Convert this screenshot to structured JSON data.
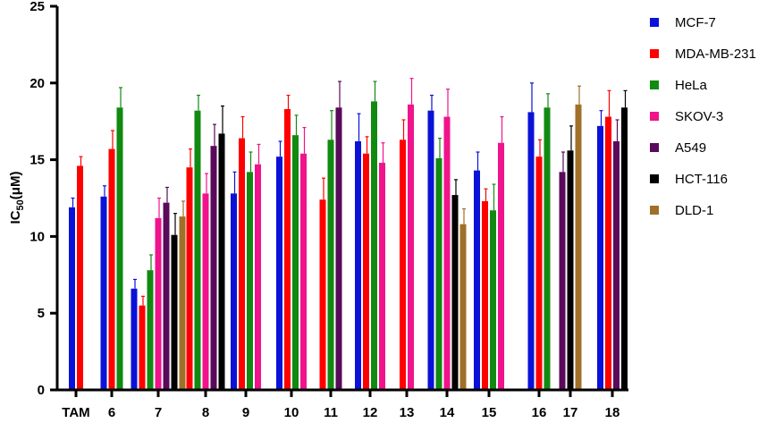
{
  "chart_data": {
    "type": "bar",
    "ylabel": "IC",
    "ylabel_sub": "50",
    "ylabel_unit": "(μM)",
    "ylim": [
      0,
      25
    ],
    "yticks": [
      0,
      5,
      10,
      15,
      20,
      25
    ],
    "grid": false,
    "legend_position": "right",
    "categories": [
      "TAM",
      "6",
      "7",
      "8",
      "9",
      "10",
      "11",
      "12",
      "13",
      "14",
      "15",
      "16",
      "17",
      "18"
    ],
    "series": [
      {
        "name": "MCF-7",
        "color": "#0a12d8",
        "values": [
          11.9,
          12.6,
          6.6,
          null,
          12.8,
          15.2,
          null,
          16.2,
          null,
          18.2,
          14.3,
          18.1,
          null,
          17.2
        ],
        "errors": [
          0.6,
          0.7,
          0.6,
          null,
          1.4,
          1.0,
          null,
          1.8,
          null,
          1.0,
          1.2,
          1.9,
          null,
          1.0
        ]
      },
      {
        "name": "MDA-MB-231",
        "color": "#ff0000",
        "values": [
          14.6,
          15.7,
          5.5,
          14.5,
          16.4,
          18.3,
          12.4,
          15.4,
          16.3,
          null,
          12.3,
          15.2,
          null,
          17.8
        ],
        "errors": [
          0.6,
          1.2,
          0.6,
          1.2,
          1.4,
          0.9,
          1.4,
          1.1,
          1.3,
          null,
          0.8,
          1.1,
          null,
          1.7
        ]
      },
      {
        "name": "HeLa",
        "color": "#118a11",
        "values": [
          null,
          18.4,
          7.8,
          18.2,
          14.2,
          16.6,
          16.3,
          18.8,
          null,
          15.1,
          11.7,
          18.4,
          null,
          null
        ],
        "errors": [
          null,
          1.3,
          1.0,
          1.0,
          1.3,
          1.3,
          1.9,
          1.3,
          null,
          1.3,
          1.7,
          0.9,
          null,
          null
        ]
      },
      {
        "name": "SKOV-3",
        "color": "#f0138c",
        "values": [
          null,
          null,
          11.2,
          12.8,
          14.7,
          15.4,
          null,
          14.8,
          18.6,
          17.8,
          16.1,
          null,
          null,
          null
        ],
        "errors": [
          null,
          null,
          1.3,
          1.3,
          1.3,
          1.7,
          null,
          1.3,
          1.7,
          1.8,
          1.7,
          null,
          null,
          null
        ]
      },
      {
        "name": "A549",
        "color": "#5a0a5a",
        "values": [
          null,
          null,
          12.2,
          15.9,
          null,
          null,
          18.4,
          null,
          null,
          null,
          null,
          null,
          14.2,
          16.2
        ],
        "errors": [
          null,
          null,
          1.0,
          1.4,
          null,
          null,
          1.7,
          null,
          null,
          null,
          null,
          null,
          1.3,
          1.4
        ]
      },
      {
        "name": "HCT-116",
        "color": "#000000",
        "values": [
          null,
          null,
          10.1,
          16.7,
          null,
          null,
          null,
          null,
          null,
          12.7,
          null,
          null,
          15.6,
          18.4
        ],
        "errors": [
          null,
          null,
          1.4,
          1.8,
          null,
          null,
          null,
          null,
          null,
          1.0,
          null,
          null,
          1.6,
          1.1
        ]
      },
      {
        "name": "DLD-1",
        "color": "#a07028",
        "values": [
          null,
          null,
          11.3,
          null,
          null,
          null,
          null,
          null,
          null,
          10.8,
          null,
          null,
          18.6,
          null
        ],
        "errors": [
          null,
          null,
          1.0,
          null,
          null,
          null,
          null,
          null,
          null,
          1.0,
          null,
          null,
          1.2,
          null
        ]
      }
    ]
  }
}
